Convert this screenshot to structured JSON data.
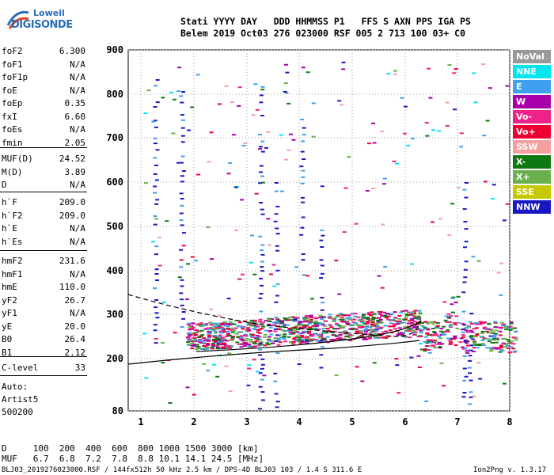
{
  "logo": {
    "line1": "Lowell",
    "line2": "DIGISONDE"
  },
  "header": {
    "row1": "Stati YYYY DAY   DDD HHMMSS P1   FFS S AXN PPS IGA PS",
    "row2": "Belem 2019 Oct03 276 023000 RSF 005 2 713 100 03+ C0"
  },
  "params": {
    "group1": [
      {
        "k": "foF2",
        "v": "6.300"
      },
      {
        "k": "foF1",
        "v": "N/A"
      },
      {
        "k": "foF1p",
        "v": "N/A"
      },
      {
        "k": "foE",
        "v": "N/A"
      },
      {
        "k": "foEp",
        "v": "0.35"
      },
      {
        "k": "fxI",
        "v": "6.60"
      },
      {
        "k": "foEs",
        "v": "N/A"
      },
      {
        "k": "fmin",
        "v": "2.05"
      }
    ],
    "group2": [
      {
        "k": "MUF(D)",
        "v": "24.52"
      },
      {
        "k": "M(D)",
        "v": "3.89"
      },
      {
        "k": "D",
        "v": "N/A"
      }
    ],
    "group3": [
      {
        "k": "h`F",
        "v": "209.0"
      },
      {
        "k": "h`F2",
        "v": "209.0"
      },
      {
        "k": "h`E",
        "v": "N/A"
      },
      {
        "k": "h`Es",
        "v": "N/A"
      }
    ],
    "group4": [
      {
        "k": "hmF2",
        "v": "231.6"
      },
      {
        "k": "hmF1",
        "v": "N/A"
      },
      {
        "k": "hmE",
        "v": "110.0"
      },
      {
        "k": "yF2",
        "v": "26.7"
      },
      {
        "k": "yF1",
        "v": "N/A"
      },
      {
        "k": "yE",
        "v": "20.0"
      },
      {
        "k": "B0",
        "v": "26.4"
      },
      {
        "k": "B1",
        "v": "2.12"
      }
    ],
    "group5": [
      {
        "k": "C-level",
        "v": "33"
      }
    ]
  },
  "misc": {
    "auto": "Auto:",
    "artist": "Artist5",
    "number": "500200"
  },
  "legend": [
    {
      "label": "NoVal",
      "color": "#999999"
    },
    {
      "label": "NNE",
      "color": "#00e5ee"
    },
    {
      "label": "E",
      "color": "#3ea0ee"
    },
    {
      "label": "W",
      "color": "#a800a8"
    },
    {
      "label": "Vo-",
      "color": "#ee2288"
    },
    {
      "label": "Vo+",
      "color": "#ee0033"
    },
    {
      "label": "SSW",
      "color": "#f4a0a0"
    },
    {
      "label": "X-",
      "color": "#107810"
    },
    {
      "label": "X+",
      "color": "#6ab04c"
    },
    {
      "label": "SSE",
      "color": "#c8c800"
    },
    {
      "label": "NNW",
      "color": "#1818c0"
    }
  ],
  "plot": {
    "y_ticks": [
      "900",
      "800",
      "700",
      "600",
      "500",
      "400",
      "300",
      "200",
      "80"
    ],
    "x_ticks": [
      "1",
      "2",
      "3",
      "4",
      "5",
      "6",
      "7",
      "8"
    ]
  },
  "footer": {
    "row1": "D     100  200  400  600  800 1000 1500 3000 [km]",
    "row2": "MUF   6.7  6.8  7.2  7.8  8.8 10.1 14.1 24.5 [MHz]",
    "row3": "BLJ03_2019276023000.RSF / 144fx512h 50 kHz 2.5 km / DPS-4D BLJ03 103 / 1.4 S 311.6 E",
    "version": "Ion2Png v. 1.3.17"
  }
}
